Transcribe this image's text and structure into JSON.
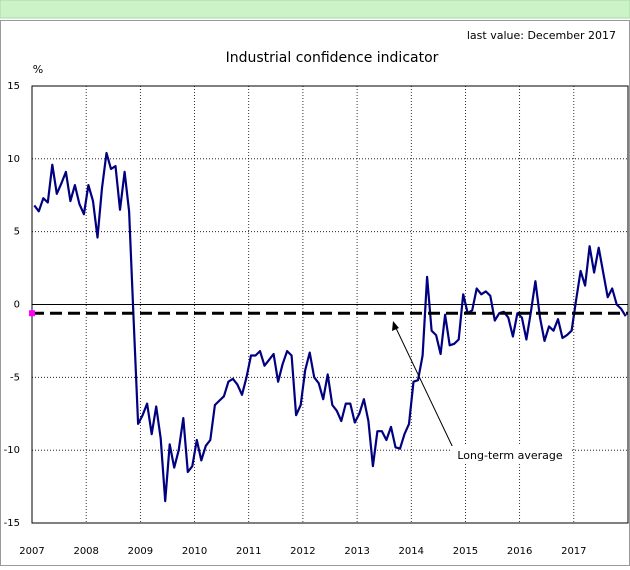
{
  "chart_data": {
    "type": "line",
    "title": "Industrial confidence indicator",
    "subtitle": "last value: December 2017",
    "y_label": "%",
    "categories": [
      "2007",
      null,
      null,
      null,
      null,
      null,
      null,
      null,
      null,
      null,
      null,
      null,
      "2008",
      null,
      null,
      null,
      null,
      null,
      null,
      null,
      null,
      null,
      null,
      null,
      "2009",
      null,
      null,
      null,
      null,
      null,
      null,
      null,
      null,
      null,
      null,
      null,
      "2010",
      null,
      null,
      null,
      null,
      null,
      null,
      null,
      null,
      null,
      null,
      null,
      "2011",
      null,
      null,
      null,
      null,
      null,
      null,
      null,
      null,
      null,
      null,
      null,
      "2012",
      null,
      null,
      null,
      null,
      null,
      null,
      null,
      null,
      null,
      null,
      null,
      "2013",
      null,
      null,
      null,
      null,
      null,
      null,
      null,
      null,
      null,
      null,
      null,
      "2014",
      null,
      null,
      null,
      null,
      null,
      null,
      null,
      null,
      null,
      null,
      null,
      "2015",
      null,
      null,
      null,
      null,
      null,
      null,
      null,
      null,
      null,
      null,
      null,
      "2016",
      null,
      null,
      null,
      null,
      null,
      null,
      null,
      null,
      null,
      null,
      null,
      "2017",
      null,
      null,
      null,
      null,
      null,
      null,
      null,
      null,
      null,
      null,
      null
    ],
    "series": [
      {
        "color": "#000080",
        "values": [
          6.8,
          6.4,
          7.3,
          7.0,
          9.6,
          7.6,
          8.3,
          9.1,
          7.1,
          8.2,
          6.9,
          6.2,
          8.2,
          7.1,
          4.6,
          8.0,
          10.4,
          9.3,
          9.5,
          6.5,
          9.1,
          6.4,
          -1.0,
          -8.2,
          -7.6,
          -6.8,
          -8.9,
          -7.0,
          -9.2,
          -13.5,
          -9.6,
          -11.2,
          -10.0,
          -7.8,
          -11.5,
          -11.1,
          -9.3,
          -10.7,
          -9.7,
          -9.3,
          -6.9,
          -6.6,
          -6.3,
          -5.3,
          -5.1,
          -5.5,
          -6.2,
          -5.0,
          -3.5,
          -3.5,
          -3.2,
          -4.2,
          -3.8,
          -3.4,
          -5.3,
          -4.1,
          -3.2,
          -3.5,
          -7.6,
          -6.9,
          -4.5,
          -3.3,
          -5.0,
          -5.4,
          -6.5,
          -4.8,
          -6.9,
          -7.3,
          -8.0,
          -6.8,
          -6.8,
          -8.1,
          -7.5,
          -6.5,
          -8.0,
          -11.1,
          -8.7,
          -8.7,
          -9.3,
          -8.4,
          -9.8,
          -9.9,
          -8.9,
          -8.2,
          -5.3,
          -5.2,
          -3.5,
          1.9,
          -1.8,
          -2.1,
          -3.4,
          -0.7,
          -2.8,
          -2.7,
          -2.4,
          0.7,
          -0.6,
          -0.4,
          1.1,
          0.7,
          0.9,
          0.6,
          -1.1,
          -0.6,
          -0.5,
          -0.9,
          -2.2,
          -0.6,
          -0.9,
          -2.4,
          -0.5,
          1.6,
          -0.9,
          -2.5,
          -1.5,
          -1.8,
          -1.0,
          -2.3,
          -2.1,
          -1.8,
          0.3,
          2.3,
          1.3,
          4.0,
          2.2,
          3.9,
          2.2,
          0.5,
          1.1,
          0.0,
          -0.3,
          -0.8
        ]
      }
    ],
    "reference_line": {
      "value": -0.6,
      "label": "Long-term average",
      "color": "#000000",
      "marker_color": "#ff00ff"
    },
    "ylim": [
      -15,
      15
    ],
    "yticks": [
      -15,
      -10,
      -5,
      0,
      5,
      10,
      15
    ],
    "grid": true
  }
}
